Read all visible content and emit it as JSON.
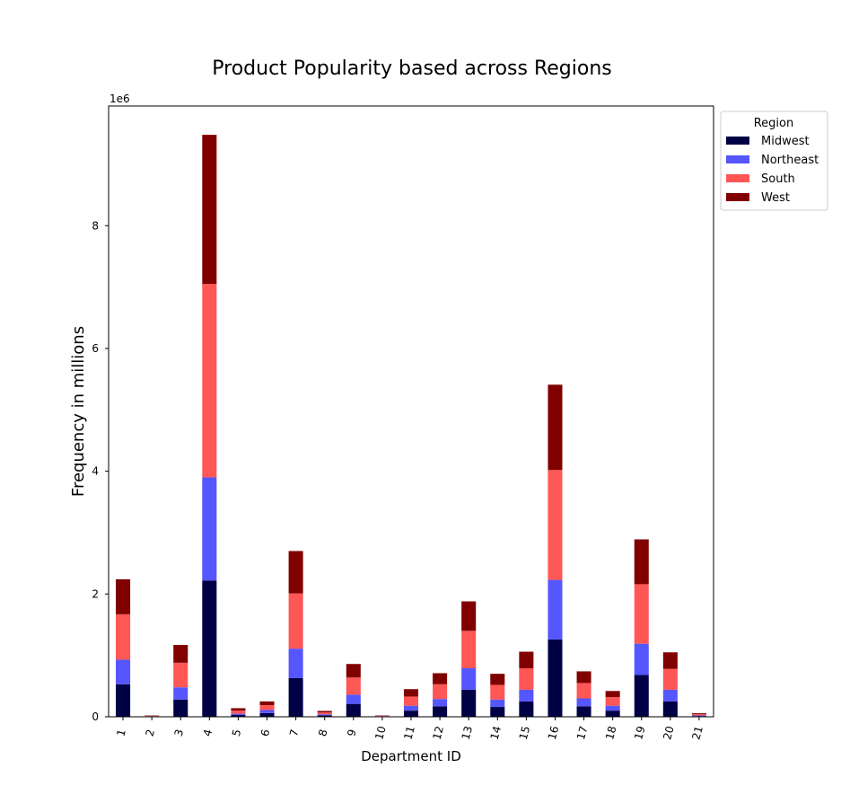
{
  "chart_data": {
    "type": "bar",
    "stacked": true,
    "title": "Product Popularity based across Regions",
    "xlabel": "Department ID",
    "ylabel": "Frequency in millions",
    "y_offset_label": "1e6",
    "ylim": [
      0,
      9.95
    ],
    "yticks": [
      0,
      2,
      4,
      6,
      8
    ],
    "grid": false,
    "legend": {
      "title": "Region",
      "placement": "outside top-right"
    },
    "categories": [
      "1",
      "2",
      "3",
      "4",
      "5",
      "6",
      "7",
      "8",
      "9",
      "10",
      "11",
      "12",
      "13",
      "14",
      "15",
      "16",
      "17",
      "18",
      "19",
      "20",
      "21"
    ],
    "series": [
      {
        "name": "Midwest",
        "color": "#000045",
        "values": [
          0.53,
          0.006,
          0.28,
          2.22,
          0.03,
          0.06,
          0.63,
          0.025,
          0.21,
          0.006,
          0.1,
          0.17,
          0.44,
          0.16,
          0.25,
          1.26,
          0.17,
          0.1,
          0.68,
          0.25,
          0.012
        ]
      },
      {
        "name": "Northeast",
        "color": "#5656ff",
        "values": [
          0.4,
          0.004,
          0.2,
          1.68,
          0.02,
          0.05,
          0.48,
          0.015,
          0.15,
          0.004,
          0.08,
          0.12,
          0.35,
          0.12,
          0.19,
          0.97,
          0.13,
          0.08,
          0.51,
          0.19,
          0.01
        ]
      },
      {
        "name": "South",
        "color": "#ff5656",
        "values": [
          0.74,
          0.007,
          0.4,
          3.15,
          0.05,
          0.08,
          0.9,
          0.03,
          0.28,
          0.007,
          0.15,
          0.24,
          0.61,
          0.24,
          0.35,
          1.79,
          0.25,
          0.14,
          0.97,
          0.34,
          0.02
        ]
      },
      {
        "name": "West",
        "color": "#800000",
        "values": [
          0.57,
          0.006,
          0.29,
          2.43,
          0.04,
          0.06,
          0.69,
          0.025,
          0.22,
          0.006,
          0.12,
          0.18,
          0.48,
          0.18,
          0.27,
          1.39,
          0.19,
          0.1,
          0.73,
          0.27,
          0.015
        ]
      }
    ]
  }
}
